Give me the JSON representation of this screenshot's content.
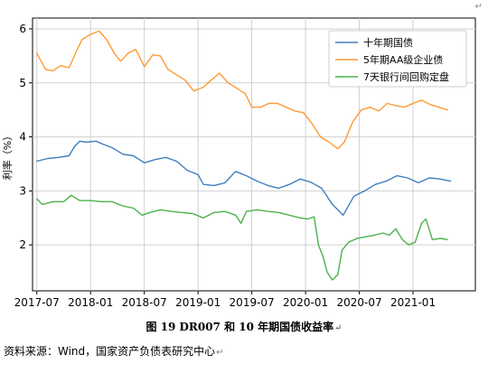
{
  "chart_data": {
    "type": "line",
    "title": "",
    "xlabel": "",
    "ylabel": "利率（%）",
    "ylim": [
      1.15,
      6.2
    ],
    "yticks": [
      2,
      3,
      4,
      5,
      6
    ],
    "xlim": [
      2017.46,
      2021.58
    ],
    "xticks": [
      {
        "value": 2017.5,
        "label": "2017-07"
      },
      {
        "value": 2018.0,
        "label": "2018-01"
      },
      {
        "value": 2018.5,
        "label": "2018-07"
      },
      {
        "value": 2019.0,
        "label": "2019-01"
      },
      {
        "value": 2019.5,
        "label": "2019-07"
      },
      {
        "value": 2020.0,
        "label": "2020-01"
      },
      {
        "value": 2020.5,
        "label": "2020-07"
      },
      {
        "value": 2021.0,
        "label": "2021-01"
      }
    ],
    "grid": true,
    "legend_position": "top-right",
    "series": [
      {
        "name": "十年期国债",
        "color": "#3f7fbf",
        "points": [
          [
            2017.5,
            3.55
          ],
          [
            2017.6,
            3.6
          ],
          [
            2017.7,
            3.62
          ],
          [
            2017.8,
            3.65
          ],
          [
            2017.85,
            3.82
          ],
          [
            2017.9,
            3.92
          ],
          [
            2017.96,
            3.9
          ],
          [
            2018.05,
            3.92
          ],
          [
            2018.12,
            3.86
          ],
          [
            2018.2,
            3.8
          ],
          [
            2018.3,
            3.68
          ],
          [
            2018.4,
            3.65
          ],
          [
            2018.5,
            3.52
          ],
          [
            2018.6,
            3.58
          ],
          [
            2018.7,
            3.62
          ],
          [
            2018.8,
            3.55
          ],
          [
            2018.9,
            3.38
          ],
          [
            2019.0,
            3.3
          ],
          [
            2019.05,
            3.12
          ],
          [
            2019.15,
            3.1
          ],
          [
            2019.25,
            3.15
          ],
          [
            2019.35,
            3.36
          ],
          [
            2019.45,
            3.28
          ],
          [
            2019.55,
            3.18
          ],
          [
            2019.65,
            3.1
          ],
          [
            2019.75,
            3.05
          ],
          [
            2019.85,
            3.12
          ],
          [
            2019.95,
            3.22
          ],
          [
            2020.05,
            3.16
          ],
          [
            2020.15,
            3.05
          ],
          [
            2020.25,
            2.75
          ],
          [
            2020.35,
            2.55
          ],
          [
            2020.45,
            2.9
          ],
          [
            2020.55,
            3.0
          ],
          [
            2020.65,
            3.12
          ],
          [
            2020.75,
            3.18
          ],
          [
            2020.85,
            3.28
          ],
          [
            2020.95,
            3.24
          ],
          [
            2021.05,
            3.15
          ],
          [
            2021.15,
            3.24
          ],
          [
            2021.25,
            3.22
          ],
          [
            2021.35,
            3.18
          ]
        ]
      },
      {
        "name": "5年期AA级企业债",
        "color": "#ff9933",
        "points": [
          [
            2017.5,
            5.55
          ],
          [
            2017.58,
            5.25
          ],
          [
            2017.65,
            5.22
          ],
          [
            2017.72,
            5.32
          ],
          [
            2017.8,
            5.28
          ],
          [
            2017.86,
            5.55
          ],
          [
            2017.92,
            5.8
          ],
          [
            2018.0,
            5.9
          ],
          [
            2018.08,
            5.96
          ],
          [
            2018.15,
            5.8
          ],
          [
            2018.22,
            5.55
          ],
          [
            2018.28,
            5.4
          ],
          [
            2018.35,
            5.55
          ],
          [
            2018.42,
            5.62
          ],
          [
            2018.5,
            5.3
          ],
          [
            2018.58,
            5.52
          ],
          [
            2018.65,
            5.5
          ],
          [
            2018.72,
            5.25
          ],
          [
            2018.8,
            5.15
          ],
          [
            2018.88,
            5.05
          ],
          [
            2018.96,
            4.85
          ],
          [
            2019.05,
            4.92
          ],
          [
            2019.12,
            5.05
          ],
          [
            2019.2,
            5.18
          ],
          [
            2019.28,
            5.0
          ],
          [
            2019.36,
            4.9
          ],
          [
            2019.44,
            4.8
          ],
          [
            2019.5,
            4.55
          ],
          [
            2019.58,
            4.55
          ],
          [
            2019.66,
            4.62
          ],
          [
            2019.74,
            4.62
          ],
          [
            2019.82,
            4.55
          ],
          [
            2019.9,
            4.48
          ],
          [
            2019.98,
            4.45
          ],
          [
            2020.06,
            4.25
          ],
          [
            2020.14,
            4.0
          ],
          [
            2020.22,
            3.9
          ],
          [
            2020.3,
            3.78
          ],
          [
            2020.36,
            3.9
          ],
          [
            2020.44,
            4.28
          ],
          [
            2020.52,
            4.5
          ],
          [
            2020.6,
            4.55
          ],
          [
            2020.68,
            4.48
          ],
          [
            2020.76,
            4.62
          ],
          [
            2020.84,
            4.58
          ],
          [
            2020.92,
            4.55
          ],
          [
            2021.0,
            4.62
          ],
          [
            2021.08,
            4.68
          ],
          [
            2021.16,
            4.6
          ],
          [
            2021.24,
            4.55
          ],
          [
            2021.32,
            4.5
          ]
        ]
      },
      {
        "name": "7天银行间回购定盘",
        "color": "#4cb24c",
        "points": [
          [
            2017.5,
            2.85
          ],
          [
            2017.55,
            2.75
          ],
          [
            2017.65,
            2.8
          ],
          [
            2017.75,
            2.8
          ],
          [
            2017.82,
            2.92
          ],
          [
            2017.9,
            2.82
          ],
          [
            2018.0,
            2.82
          ],
          [
            2018.1,
            2.8
          ],
          [
            2018.2,
            2.8
          ],
          [
            2018.3,
            2.72
          ],
          [
            2018.4,
            2.68
          ],
          [
            2018.48,
            2.55
          ],
          [
            2018.55,
            2.6
          ],
          [
            2018.65,
            2.65
          ],
          [
            2018.75,
            2.62
          ],
          [
            2018.85,
            2.6
          ],
          [
            2018.95,
            2.58
          ],
          [
            2019.05,
            2.5
          ],
          [
            2019.15,
            2.6
          ],
          [
            2019.25,
            2.62
          ],
          [
            2019.35,
            2.55
          ],
          [
            2019.4,
            2.4
          ],
          [
            2019.45,
            2.62
          ],
          [
            2019.55,
            2.65
          ],
          [
            2019.65,
            2.62
          ],
          [
            2019.75,
            2.6
          ],
          [
            2019.85,
            2.55
          ],
          [
            2019.95,
            2.5
          ],
          [
            2020.02,
            2.48
          ],
          [
            2020.08,
            2.52
          ],
          [
            2020.12,
            2.0
          ],
          [
            2020.16,
            1.8
          ],
          [
            2020.2,
            1.5
          ],
          [
            2020.25,
            1.35
          ],
          [
            2020.3,
            1.45
          ],
          [
            2020.34,
            1.9
          ],
          [
            2020.4,
            2.05
          ],
          [
            2020.48,
            2.12
          ],
          [
            2020.56,
            2.15
          ],
          [
            2020.64,
            2.18
          ],
          [
            2020.72,
            2.22
          ],
          [
            2020.78,
            2.18
          ],
          [
            2020.84,
            2.3
          ],
          [
            2020.9,
            2.1
          ],
          [
            2020.96,
            2.0
          ],
          [
            2021.02,
            2.05
          ],
          [
            2021.08,
            2.4
          ],
          [
            2021.12,
            2.48
          ],
          [
            2021.18,
            2.1
          ],
          [
            2021.26,
            2.12
          ],
          [
            2021.32,
            2.1
          ]
        ]
      }
    ]
  },
  "caption": "图 19 DR007 和 10 年期国债收益率",
  "source": "资料来源：Wind，国家资产负债表研究中心",
  "paragraph_mark": "↵",
  "corner_mark": "↵"
}
